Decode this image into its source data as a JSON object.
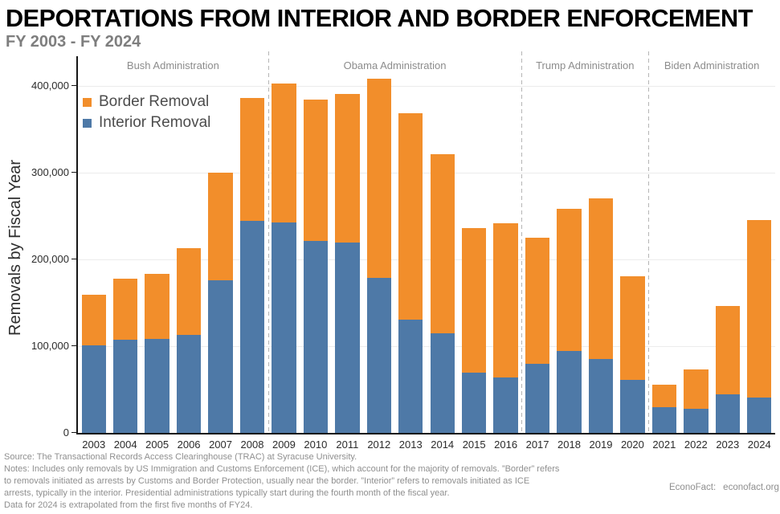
{
  "header": {
    "title": "DEPORTATIONS FROM INTERIOR AND BORDER ENFORCEMENT",
    "subtitle": "FY 2003 - FY 2024"
  },
  "legend": {
    "items": [
      {
        "label": "Border Removal",
        "color": "#F28E2B"
      },
      {
        "label": "Interior Removal",
        "color": "#4E79A7"
      }
    ]
  },
  "chart_data": {
    "type": "bar",
    "stacked": true,
    "title": "DEPORTATIONS FROM INTERIOR AND BORDER ENFORCEMENT",
    "subtitle": "FY 2003 - FY 2024",
    "xlabel": "",
    "ylabel": "Removals by Fiscal Year",
    "ylim": [
      0,
      434000
    ],
    "yticks": [
      0,
      100000,
      200000,
      300000,
      400000
    ],
    "ytick_labels": [
      "0",
      "100,000",
      "200,000",
      "300,000",
      "400,000"
    ],
    "grid": "horizontal-light",
    "legend_position": "upper-left-inside",
    "categories": [
      "2003",
      "2004",
      "2005",
      "2006",
      "2007",
      "2008",
      "2009",
      "2010",
      "2011",
      "2012",
      "2013",
      "2014",
      "2015",
      "2016",
      "2017",
      "2018",
      "2019",
      "2020",
      "2021",
      "2022",
      "2023",
      "2024"
    ],
    "series": [
      {
        "name": "Interior Removal",
        "color": "#4E79A7",
        "values": [
          101000,
          107000,
          108000,
          113000,
          176000,
          244000,
          243000,
          221000,
          219000,
          179000,
          131000,
          115000,
          69000,
          64000,
          80000,
          94000,
          85000,
          61000,
          30000,
          28000,
          44000,
          41000
        ]
      },
      {
        "name": "Border Removal",
        "color": "#F28E2B",
        "values": [
          58000,
          71000,
          75000,
          100000,
          124000,
          142000,
          160000,
          163000,
          172000,
          229000,
          238000,
          206000,
          167000,
          178000,
          145000,
          164000,
          185000,
          120000,
          26000,
          45000,
          102000,
          204000
        ]
      }
    ],
    "annotations": {
      "admin_groups": [
        {
          "label": "Bush Administration",
          "span": 6
        },
        {
          "label": "Obama Administration",
          "span": 8
        },
        {
          "label": "Trump Administration",
          "span": 4
        },
        {
          "label": "Biden Administration",
          "span": 4
        }
      ],
      "separator_style": "dashed-gray"
    }
  },
  "footer": {
    "lines": [
      "Source: The Transactional Records Access Clearinghouse (TRAC) at Syracuse University.",
      "Notes: Includes only removals by US Immigration and Customs Enforcement (ICE), which account for the majority of removals. ”Border” refers",
      "to removals initiated as arrests by Customs and Border Protection, usually near the border. ”Interior” refers to removals initiated as ICE",
      "arrests, typically in the interior. Presidential administrations typically start during the fourth month of the fiscal year.",
      "Data for 2024 is extrapolated from the first five months of FY24."
    ],
    "attribution": {
      "org": "EconoFact:",
      "url": "econofact.org"
    }
  }
}
